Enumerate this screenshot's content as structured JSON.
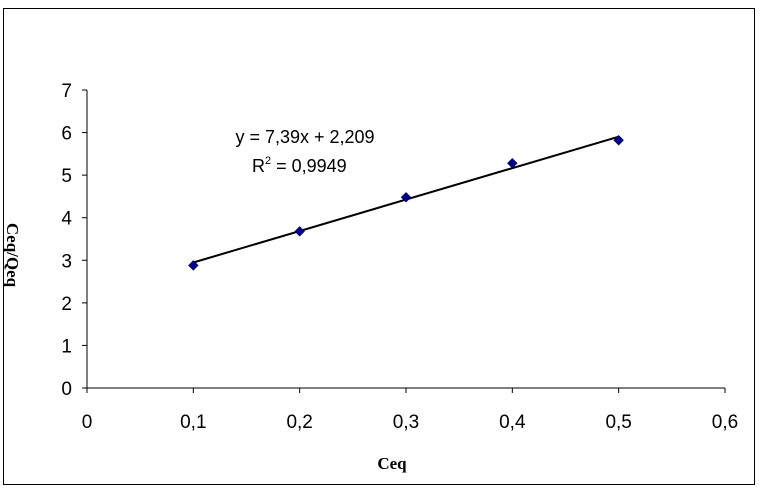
{
  "chart_data": {
    "type": "scatter",
    "xlabel": "Ceq",
    "ylabel": "Ceq/Qeq",
    "xlim": [
      0,
      0.6
    ],
    "ylim": [
      0,
      7
    ],
    "x_ticks": [
      "0",
      "0,1",
      "0,2",
      "0,3",
      "0,4",
      "0,5",
      "0,6"
    ],
    "y_ticks": [
      "0",
      "1",
      "2",
      "3",
      "4",
      "5",
      "6",
      "7"
    ],
    "series": [
      {
        "x": [
          0.1,
          0.2,
          0.3,
          0.4,
          0.5
        ],
        "y": [
          2.88,
          3.68,
          4.48,
          5.28,
          5.82
        ],
        "marker": "diamond",
        "color": "#000080"
      }
    ],
    "trendline": {
      "slope": 7.39,
      "intercept": 2.209,
      "x_range": [
        0.1,
        0.5
      ],
      "color": "#000000",
      "equation": "y = 7,39x + 2,209",
      "r2_prefix": "R",
      "r2_sup": "2",
      "r2_value": " = 0,9949"
    },
    "grid": false,
    "legend": "none"
  }
}
